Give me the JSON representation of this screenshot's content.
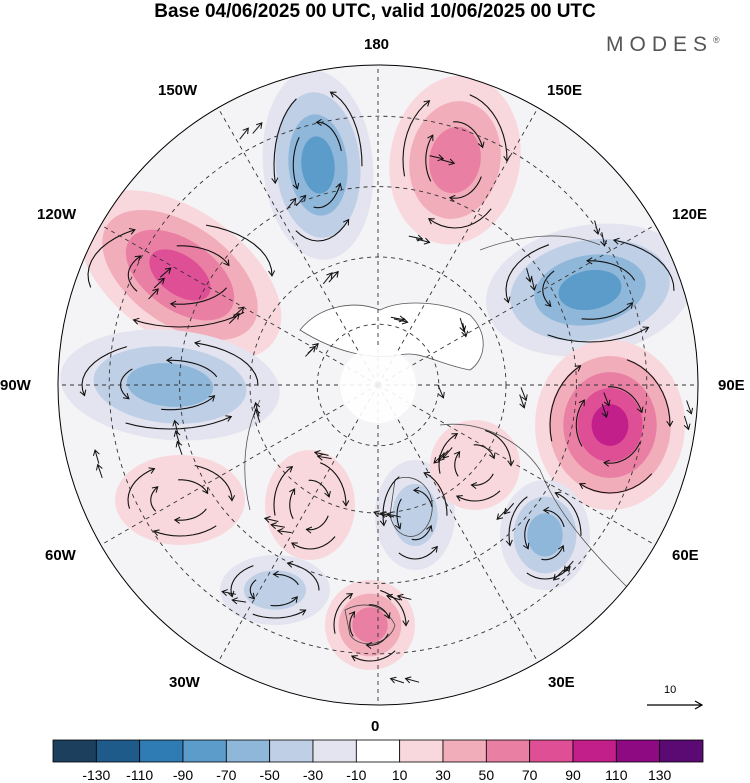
{
  "title": "Base 04/06/2025 00 UTC, valid 10/06/2025 00 UTC",
  "logo": {
    "text": "MODES",
    "mark": "®"
  },
  "longitude_labels": {
    "lon_180": "180",
    "lon_150E": "150E",
    "lon_120E": "120E",
    "lon_90E": "90E",
    "lon_60E": "60E",
    "lon_30E": "30E",
    "lon_0": "0",
    "lon_30W": "30W",
    "lon_60W": "60W",
    "lon_90W": "90W",
    "lon_120W": "120W",
    "lon_150W": "150W"
  },
  "reference_vector": {
    "label": "10"
  },
  "colorbar": {
    "boundaries": [
      "-130",
      "-110",
      "-90",
      "-70",
      "-50",
      "-30",
      "-10",
      "10",
      "30",
      "50",
      "70",
      "90",
      "110",
      "130"
    ],
    "colors": [
      "#1d3f5e",
      "#1f5b8a",
      "#2f7bb3",
      "#5b9cca",
      "#8fb7da",
      "#bfcfe6",
      "#e4e4f0",
      "#ffffff",
      "#f8d8dc",
      "#f2adba",
      "#ea7fa4",
      "#de4f96",
      "#c21f8a",
      "#8e0a82",
      "#5a0a72"
    ]
  },
  "anomaly_centers": [
    {
      "name": "low-150W",
      "value": -90
    },
    {
      "name": "high-165E",
      "value": 70
    },
    {
      "name": "high-120W",
      "value": 90
    },
    {
      "name": "low-110E",
      "value": -90
    },
    {
      "name": "low-95W",
      "value": -70
    },
    {
      "name": "high-80E",
      "value": 110
    },
    {
      "name": "high-45W",
      "value": 30
    },
    {
      "name": "low-50E",
      "value": -70
    },
    {
      "name": "high-15W",
      "value": 30
    },
    {
      "name": "low-20E",
      "value": -50
    },
    {
      "name": "high-45E",
      "value": 30
    },
    {
      "name": "low-30W",
      "value": -50
    },
    {
      "name": "high-5W",
      "value": 70
    }
  ]
}
